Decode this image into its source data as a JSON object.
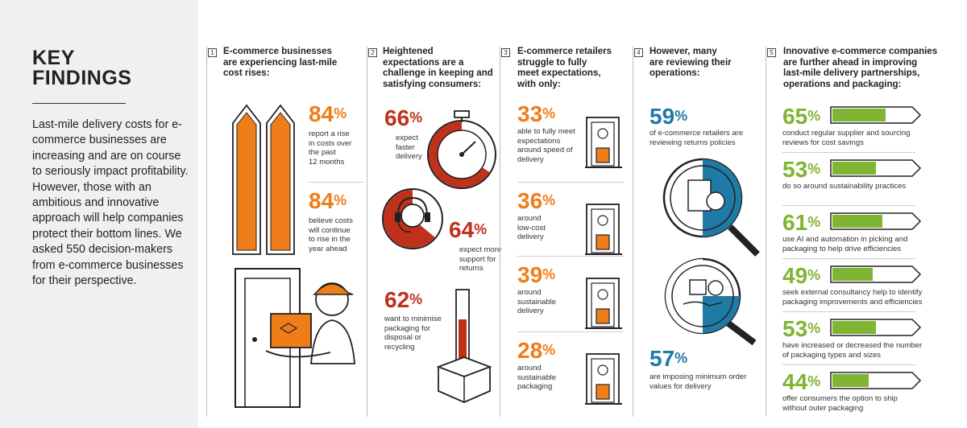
{
  "left": {
    "title": "KEY\nFINDINGS",
    "intro": "Last-mile delivery costs for e-commerce businesses are increasing and are on course to seriously impact profitability. However, those with an ambitious and innovative approach will help companies protect their bottom lines. We asked 550 decision-makers from e-commerce businesses for their perspective."
  },
  "colors": {
    "orange": "#ef7d1a",
    "red": "#c0311c",
    "blue": "#1f7aa6",
    "green": "#7fb532"
  },
  "c1": {
    "n": "1",
    "head": "E-commerce businesses\nare experiencing last-mile\ncost rises:",
    "s1": {
      "v": "84",
      "t": "report a rise\nin costs over\nthe past\n12 months"
    },
    "s2": {
      "v": "84",
      "t": "believe costs\nwill continue\nto rise in the\nyear ahead"
    }
  },
  "c2": {
    "n": "2",
    "head": "Heightened\nexpectations are a\nchallenge in keeping and\nsatisfying consumers:",
    "s1": {
      "v": "66",
      "t": "expect\nfaster\ndelivery",
      "fill": 0.66
    },
    "s2": {
      "v": "64",
      "t": "expect more\nsupport for\nreturns",
      "fill": 0.64
    },
    "s3": {
      "v": "62",
      "t": "want to minimise\npackaging for\ndisposal or\nrecycling",
      "fill": 0.62
    }
  },
  "c3": {
    "n": "3",
    "head": "E-commerce retailers\nstruggle to fully\nmeet expectations,\nwith only:",
    "s1": {
      "v": "33",
      "t": "able to fully meet\nexpectations\naround speed of\ndelivery"
    },
    "s2": {
      "v": "36",
      "t": "around\nlow-cost\ndelivery"
    },
    "s3": {
      "v": "39",
      "t": "around\nsustainable\ndelivery"
    },
    "s4": {
      "v": "28",
      "t": "around\nsustainable\npackaging"
    }
  },
  "c4": {
    "n": "4",
    "head": "However, many\nare reviewing their\noperations:",
    "s1": {
      "v": "59",
      "t": "of e-commerce retailers are\nreviewing returns policies"
    },
    "s2": {
      "v": "57",
      "t": "are imposing minimum order\nvalues for delivery"
    }
  },
  "c5": {
    "n": "5",
    "head": "Innovative e-commerce companies\nare further ahead in improving\nlast-mile delivery partnerships,\noperations and packaging:",
    "items": [
      {
        "v": "65",
        "t": "conduct regular supplier and sourcing\nreviews for cost savings",
        "fill": 0.65
      },
      {
        "v": "53",
        "t": "do so around sustainability practices",
        "fill": 0.53
      },
      {
        "v": "61",
        "t": "use AI and automation in picking and\npackaging to help drive efficiencies",
        "fill": 0.61
      },
      {
        "v": "49",
        "t": "seek external consultancy help to identify\npackaging improvements and efficiencies",
        "fill": 0.49
      },
      {
        "v": "53",
        "t": "have increased or decreased the number\nof packaging types and sizes",
        "fill": 0.53
      },
      {
        "v": "44",
        "t": "offer consumers the option to ship\nwithout outer packaging",
        "fill": 0.44
      }
    ]
  },
  "pct": "%"
}
